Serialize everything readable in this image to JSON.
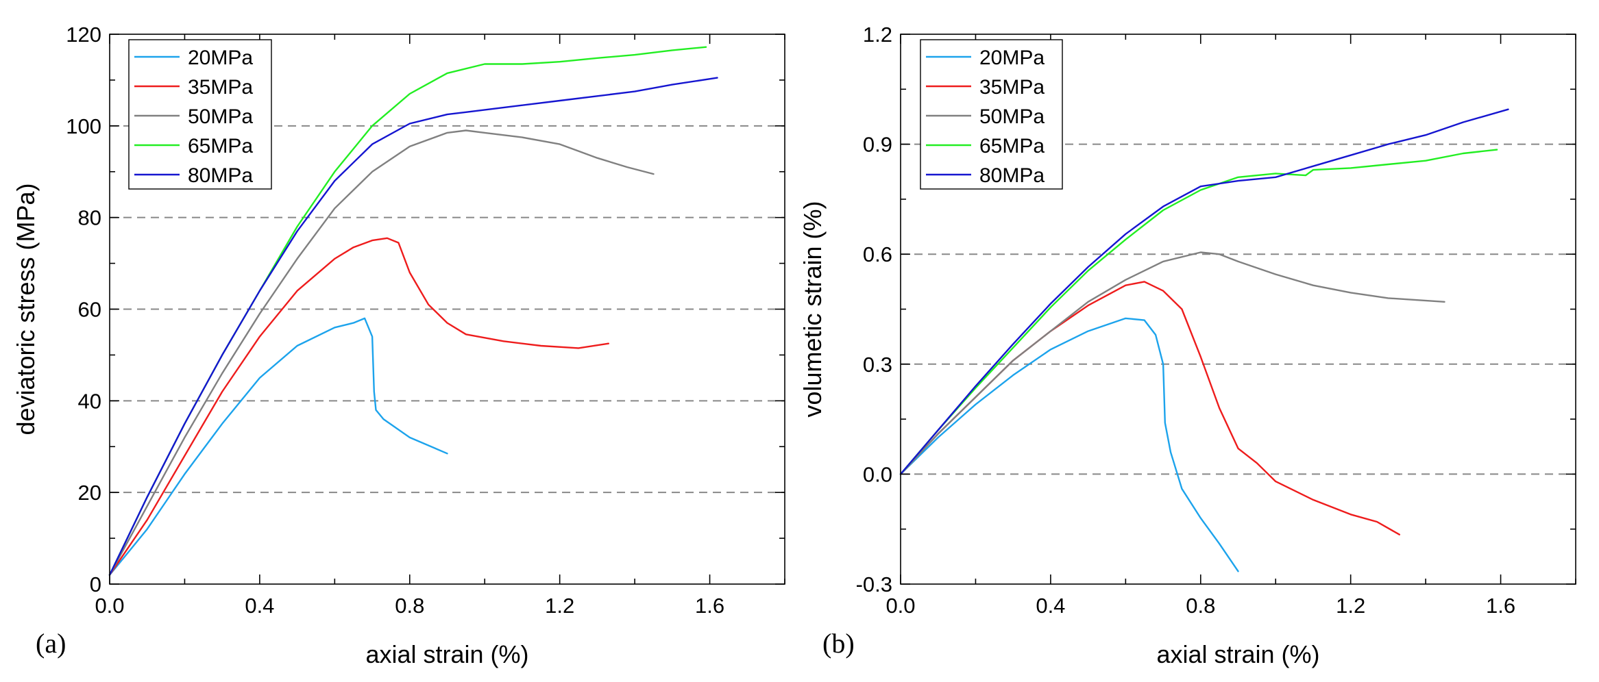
{
  "chart_data": [
    {
      "type": "line",
      "panel_label": "(a)",
      "xlabel": "axial strain (%)",
      "ylabel": "deviatoric stress (MPa)",
      "xlim": [
        0,
        1.8
      ],
      "ylim": [
        0,
        120
      ],
      "xticks": [
        0.0,
        0.4,
        0.8,
        1.2,
        1.6
      ],
      "yticks": [
        0,
        20,
        40,
        60,
        80,
        100,
        120
      ],
      "xtick_labels": [
        "0.0",
        "0.4",
        "0.8",
        "1.2",
        "1.6"
      ],
      "ytick_labels": [
        "0",
        "20",
        "40",
        "60",
        "80",
        "100",
        "120"
      ],
      "gridlines_y": [
        20,
        40,
        60,
        80,
        100
      ],
      "legend_position": "top-left",
      "series": [
        {
          "name": "20MPa",
          "color": "#1ca3ec",
          "x": [
            0,
            0.05,
            0.1,
            0.15,
            0.2,
            0.3,
            0.4,
            0.5,
            0.6,
            0.65,
            0.68,
            0.7,
            0.705,
            0.71,
            0.73,
            0.8,
            0.9
          ],
          "y": [
            2,
            7,
            12,
            18,
            24,
            35,
            45,
            52,
            56,
            57,
            58,
            54,
            42,
            38,
            36,
            32,
            28.5
          ]
        },
        {
          "name": "35MPa",
          "color": "#ee1c1c",
          "x": [
            0,
            0.1,
            0.2,
            0.3,
            0.4,
            0.5,
            0.6,
            0.65,
            0.7,
            0.74,
            0.77,
            0.8,
            0.85,
            0.9,
            0.95,
            1.05,
            1.15,
            1.25,
            1.33
          ],
          "y": [
            2,
            14,
            28,
            42,
            54,
            64,
            71,
            73.5,
            75,
            75.5,
            74.5,
            68,
            61,
            57,
            54.5,
            53,
            52,
            51.5,
            52.5
          ]
        },
        {
          "name": "50MPa",
          "color": "#808080",
          "x": [
            0,
            0.1,
            0.2,
            0.3,
            0.4,
            0.5,
            0.6,
            0.7,
            0.8,
            0.9,
            0.95,
            1.0,
            1.1,
            1.2,
            1.25,
            1.3,
            1.38,
            1.45
          ],
          "y": [
            2,
            17,
            32,
            46,
            59,
            71,
            82,
            90,
            95.5,
            98.5,
            99,
            98.5,
            97.5,
            96,
            94.5,
            93,
            91,
            89.5
          ]
        },
        {
          "name": "65MPa",
          "color": "#22ee22",
          "x": [
            0,
            0.1,
            0.2,
            0.3,
            0.4,
            0.5,
            0.6,
            0.7,
            0.8,
            0.9,
            1.0,
            1.1,
            1.2,
            1.3,
            1.4,
            1.5,
            1.59
          ],
          "y": [
            2,
            19,
            35,
            50,
            64,
            78,
            90,
            100,
            107,
            111.5,
            113.5,
            113.5,
            114,
            114.8,
            115.5,
            116.5,
            117.2
          ]
        },
        {
          "name": "80MPa",
          "color": "#1515d0",
          "x": [
            0,
            0.1,
            0.2,
            0.3,
            0.4,
            0.5,
            0.6,
            0.7,
            0.8,
            0.9,
            0.95,
            1.0,
            1.1,
            1.2,
            1.3,
            1.4,
            1.5,
            1.62
          ],
          "y": [
            2,
            19,
            35,
            50,
            64,
            77,
            88,
            96,
            100.5,
            102.5,
            103,
            103.5,
            104.5,
            105.5,
            106.5,
            107.5,
            109,
            110.5
          ]
        }
      ]
    },
    {
      "type": "line",
      "panel_label": "(b)",
      "xlabel": "axial strain (%)",
      "ylabel": "volumetic strain (%)",
      "xlim": [
        0,
        1.8
      ],
      "ylim": [
        -0.3,
        1.2
      ],
      "xticks": [
        0.0,
        0.4,
        0.8,
        1.2,
        1.6
      ],
      "yticks": [
        -0.3,
        0.0,
        0.3,
        0.6,
        0.9,
        1.2
      ],
      "xtick_labels": [
        "0.0",
        "0.4",
        "0.8",
        "1.2",
        "1.6"
      ],
      "ytick_labels": [
        "-0.3",
        "0.0",
        "0.3",
        "0.6",
        "0.9",
        "1.2"
      ],
      "gridlines_y": [
        0.0,
        0.3,
        0.6,
        0.9
      ],
      "legend_position": "top-left",
      "series": [
        {
          "name": "20MPa",
          "color": "#1ca3ec",
          "x": [
            0,
            0.1,
            0.2,
            0.3,
            0.4,
            0.5,
            0.6,
            0.65,
            0.68,
            0.7,
            0.705,
            0.72,
            0.75,
            0.8,
            0.85,
            0.9
          ],
          "y": [
            0,
            0.1,
            0.19,
            0.27,
            0.34,
            0.39,
            0.425,
            0.42,
            0.38,
            0.3,
            0.14,
            0.06,
            -0.04,
            -0.12,
            -0.19,
            -0.265
          ]
        },
        {
          "name": "35MPa",
          "color": "#ee1c1c",
          "x": [
            0,
            0.1,
            0.2,
            0.3,
            0.4,
            0.5,
            0.6,
            0.65,
            0.7,
            0.75,
            0.8,
            0.85,
            0.9,
            0.95,
            1.0,
            1.1,
            1.2,
            1.27,
            1.33
          ],
          "y": [
            0,
            0.11,
            0.21,
            0.31,
            0.39,
            0.46,
            0.515,
            0.525,
            0.5,
            0.45,
            0.32,
            0.18,
            0.07,
            0.03,
            -0.02,
            -0.07,
            -0.11,
            -0.13,
            -0.165
          ]
        },
        {
          "name": "50MPa",
          "color": "#808080",
          "x": [
            0,
            0.1,
            0.2,
            0.3,
            0.4,
            0.5,
            0.6,
            0.7,
            0.8,
            0.85,
            0.9,
            1.0,
            1.1,
            1.2,
            1.3,
            1.45
          ],
          "y": [
            0,
            0.11,
            0.21,
            0.31,
            0.39,
            0.47,
            0.53,
            0.58,
            0.605,
            0.6,
            0.58,
            0.545,
            0.515,
            0.495,
            0.48,
            0.47
          ]
        },
        {
          "name": "65MPa",
          "color": "#22ee22",
          "x": [
            0,
            0.1,
            0.2,
            0.3,
            0.4,
            0.5,
            0.6,
            0.7,
            0.8,
            0.9,
            1.0,
            1.08,
            1.1,
            1.2,
            1.3,
            1.4,
            1.5,
            1.59
          ],
          "y": [
            0,
            0.12,
            0.235,
            0.345,
            0.455,
            0.555,
            0.64,
            0.72,
            0.775,
            0.81,
            0.82,
            0.815,
            0.83,
            0.835,
            0.845,
            0.855,
            0.875,
            0.885
          ]
        },
        {
          "name": "80MPa",
          "color": "#1515d0",
          "x": [
            0,
            0.1,
            0.2,
            0.3,
            0.4,
            0.5,
            0.6,
            0.7,
            0.8,
            0.9,
            1.0,
            1.1,
            1.2,
            1.3,
            1.4,
            1.5,
            1.62
          ],
          "y": [
            0,
            0.12,
            0.24,
            0.355,
            0.465,
            0.565,
            0.655,
            0.73,
            0.785,
            0.8,
            0.81,
            0.84,
            0.87,
            0.9,
            0.925,
            0.96,
            0.995
          ]
        }
      ]
    }
  ]
}
